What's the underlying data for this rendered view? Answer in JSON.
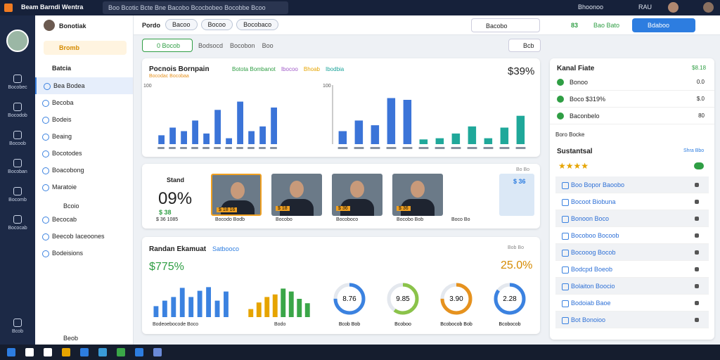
{
  "top_bar": {
    "title": "Beam Barndi Wentra",
    "search": "Boo Bcotic Bcte Bne Bacobo Bcocbobeo Bocobbe Bcoo",
    "menu": "Bhoonoo",
    "user": "RAU"
  },
  "rail": [
    "Bocobec",
    "Bocodob",
    "Bocoob",
    "Bocoban",
    "Bocomb",
    "Bococab"
  ],
  "rail_footer": "Bcob",
  "sidebar": {
    "user": "Bonotiak",
    "workspace": "Bromb",
    "section": "Batcia",
    "items": [
      "Bea Bodea",
      "Becoba",
      "Bodeis",
      "Beaing",
      "Bocotodes",
      "Boacobong",
      "Maratoie"
    ],
    "section2": "Bcoio",
    "items2": [
      "Becocab",
      "Beecob Iaceoones",
      "Bodeisions"
    ],
    "footer": "Beob"
  },
  "header": {
    "title": "Pordo",
    "tabs": [
      "Bacoo",
      "Bocoo",
      "Bocobaco"
    ],
    "search": "Bacobo",
    "status_value": "83",
    "status_label": "Bao Bato",
    "button": "Bdaboo"
  },
  "filters": {
    "active": "0 Bocob",
    "links": [
      "Bodsocd",
      "Bocobon",
      "Boo"
    ],
    "search": "Bcb"
  },
  "performance": {
    "title": "Pocnois Bornpain",
    "legend": [
      {
        "name": "Botota Bombanot",
        "color": "#2f9e44"
      },
      {
        "name": "Ibocoo",
        "color": "#a05ac8"
      },
      {
        "name": "Bhoab",
        "color": "#e6a400"
      },
      {
        "name": "Ibodbia",
        "color": "#1aa39a"
      }
    ],
    "tag": "Bocodac Bocobaa",
    "total": "$39%",
    "charts": [
      {
        "axis_label": "100",
        "ylim": [
          0,
          100
        ],
        "series": [
          {
            "color": "#3b74d8",
            "values": [
              15,
              28,
              22,
              40,
              18,
              58,
              10,
              72,
              22,
              30,
              62
            ]
          }
        ]
      },
      {
        "axis_label": "100",
        "ylim": [
          0,
          100
        ],
        "series": [
          {
            "color": "#3b74d8",
            "values": [
              22,
              40,
              32,
              78,
              75
            ]
          },
          {
            "color": "#1fa89a",
            "values": [
              8,
              10,
              18,
              30,
              10,
              28,
              48
            ]
          }
        ]
      }
    ]
  },
  "people": {
    "label": "Stand",
    "value": "09%",
    "badge": "$ 38",
    "caption": "$ 36 1085",
    "more": "Bo Bo",
    "cards": [
      {
        "badge": "$ 18 16",
        "caption": "Bocodo Bodb"
      },
      {
        "badge": "$ 18",
        "caption": "Bocobo"
      },
      {
        "badge": "$ 36",
        "caption": "Bocoboco"
      },
      {
        "badge": "$ 36",
        "caption": "Bocobo Bob"
      }
    ],
    "last": {
      "badge": "$ 36",
      "caption": "Boco Bo"
    }
  },
  "summary": {
    "title": "Randan Ekamuat",
    "subtitle": "Satbooco",
    "left_value": "$775%",
    "right_value": "25.0%",
    "small": "Bob Bo",
    "bars": {
      "ylim": [
        0,
        100
      ],
      "label": "Bodeoebocode Boco",
      "series": [
        {
          "color": "#3b82e0",
          "values": [
            30,
            45,
            55,
            80,
            55,
            72,
            82,
            45,
            70
          ]
        }
      ]
    },
    "bars2": {
      "ylim": [
        0,
        100
      ],
      "label": "Bodo",
      "series": [
        {
          "color": "#e6a400",
          "values": [
            22,
            40,
            55,
            62
          ]
        },
        {
          "color": "#3aa648",
          "values": [
            78,
            70,
            50,
            38
          ]
        }
      ]
    },
    "rings": [
      {
        "label": "8.76",
        "fill": 75,
        "color": "#3b82e0",
        "caption": "Bcob Bob"
      },
      {
        "label": "9.85",
        "fill": 60,
        "color": "#8bc34a",
        "caption": "Bcoboo"
      },
      {
        "label": "3.90",
        "fill": 75,
        "color": "#e6921e",
        "caption": "Bcobocob Bob"
      },
      {
        "label": "2.28",
        "fill": 85,
        "color": "#3b82e0",
        "caption": "Bcobocob"
      }
    ]
  },
  "right": {
    "title": "Kanal Fiate",
    "value": "$8.18",
    "rows": [
      {
        "label": "Bonoo",
        "value": "0.0"
      },
      {
        "label": "Boco $319%",
        "value": "$.0"
      },
      {
        "label": "Baconbelo",
        "value": "80"
      }
    ],
    "sub": "Boro Bocke",
    "section": "Sustantsal",
    "section_link": "Shra Bbo",
    "items": [
      "Boo Bopor Baoobo",
      "Bocoot Biobuna",
      "Bonoon Boco",
      "Bocoboo Bocoob",
      "Bocooog Bocob",
      "Bodcpd Boeob",
      "Bolaiton Boocio",
      "Bodoiab Baoe",
      "Bot Bonoioo"
    ]
  }
}
